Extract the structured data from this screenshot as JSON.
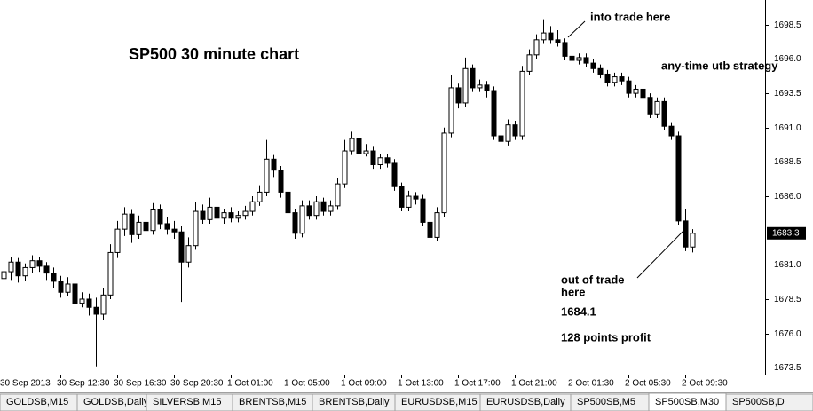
{
  "chart_data": {
    "type": "candlestick",
    "title": "SP500 30 minute chart",
    "annotations": [
      "into trade here",
      "any-time utb strategy",
      "out of trade",
      "here",
      "1684.1",
      "128 points profit"
    ],
    "categories": [
      "30 Sep 2013",
      null,
      null,
      null,
      null,
      null,
      null,
      null,
      "30 Sep 12:30",
      null,
      null,
      null,
      null,
      null,
      null,
      null,
      "30 Sep 16:30",
      null,
      null,
      null,
      null,
      null,
      null,
      null,
      "30 Sep 20:30",
      null,
      null,
      null,
      null,
      null,
      null,
      null,
      "1 Oct 01:00",
      null,
      null,
      null,
      null,
      null,
      null,
      null,
      "1 Oct 05:00",
      null,
      null,
      null,
      null,
      null,
      null,
      null,
      "1 Oct 09:00",
      null,
      null,
      null,
      null,
      null,
      null,
      null,
      "1 Oct 13:00",
      null,
      null,
      null,
      null,
      null,
      null,
      null,
      "1 Oct 17:00",
      null,
      null,
      null,
      null,
      null,
      null,
      null,
      "1 Oct 21:00",
      null,
      null,
      null,
      null,
      null,
      null,
      null,
      "2 Oct 01:30",
      null,
      null,
      null,
      null,
      null,
      null,
      null,
      "2 Oct 05:30",
      null,
      null,
      null,
      null,
      null,
      null,
      null,
      "2 Oct 09:30",
      null
    ],
    "open": [
      1680.0,
      1680.5,
      1681.2,
      1680.2,
      1680.8,
      1681.3,
      1680.9,
      1680.4,
      1679.8,
      1679.0,
      1679.6,
      1678.2,
      1678.5,
      1677.9,
      1677.4,
      1678.8,
      1681.9,
      1683.6,
      1684.7,
      1683.2,
      1684.1,
      1683.5,
      1685.0,
      1684.0,
      1683.6,
      1683.4,
      1681.2,
      1682.4,
      1684.9,
      1684.3,
      1685.2,
      1684.4,
      1684.8,
      1684.4,
      1684.6,
      1684.9,
      1685.6,
      1686.3,
      1688.7,
      1687.9,
      1686.3,
      1684.8,
      1683.3,
      1685.3,
      1684.6,
      1685.6,
      1684.9,
      1685.3,
      1686.9,
      1689.3,
      1690.2,
      1689.1,
      1689.3,
      1688.3,
      1688.8,
      1688.4,
      1686.7,
      1685.2,
      1686.0,
      1685.8,
      1684.1,
      1683.0,
      1684.8,
      1690.6,
      1693.9,
      1692.8,
      1695.3,
      1693.9,
      1694.1,
      1693.7,
      1690.4,
      1690.0,
      1691.2,
      1690.4,
      1695.1,
      1696.3,
      1697.4,
      1697.9,
      1697.4,
      1697.2,
      1696.2,
      1695.9,
      1696.1,
      1695.7,
      1695.3,
      1694.9,
      1694.3,
      1694.7,
      1694.4,
      1693.5,
      1693.8,
      1693.2,
      1692.0,
      1692.9,
      1691.1,
      1690.4,
      1684.2,
      1682.3
    ],
    "high": [
      1681.2,
      1681.6,
      1681.5,
      1681.1,
      1681.7,
      1681.6,
      1681.2,
      1680.8,
      1680.2,
      1680.1,
      1679.9,
      1679.0,
      1678.9,
      1678.6,
      1679.3,
      1682.5,
      1684.2,
      1685.2,
      1685.0,
      1684.6,
      1686.6,
      1685.5,
      1685.4,
      1684.5,
      1684.2,
      1683.8,
      1683.0,
      1685.6,
      1685.4,
      1685.9,
      1685.6,
      1685.1,
      1685.2,
      1684.9,
      1685.3,
      1686.0,
      1686.8,
      1690.1,
      1689.0,
      1688.2,
      1686.6,
      1685.1,
      1685.7,
      1685.7,
      1686.0,
      1685.9,
      1685.7,
      1687.3,
      1690.1,
      1690.7,
      1690.5,
      1689.8,
      1689.6,
      1689.1,
      1689.1,
      1688.7,
      1687.0,
      1686.4,
      1686.3,
      1686.1,
      1684.5,
      1685.2,
      1691.0,
      1694.8,
      1694.2,
      1696.1,
      1695.6,
      1694.5,
      1694.4,
      1694.0,
      1691.8,
      1691.6,
      1691.5,
      1695.5,
      1696.7,
      1697.8,
      1698.9,
      1698.4,
      1698.1,
      1697.5,
      1696.5,
      1696.4,
      1696.4,
      1696.0,
      1695.6,
      1695.2,
      1695.0,
      1695.0,
      1694.7,
      1694.1,
      1694.1,
      1693.5,
      1693.2,
      1693.2,
      1691.4,
      1690.7,
      1685.1,
      1683.6
    ],
    "low": [
      1679.4,
      1679.9,
      1679.7,
      1679.8,
      1680.4,
      1680.5,
      1679.9,
      1679.3,
      1678.6,
      1678.7,
      1677.8,
      1677.9,
      1677.3,
      1673.6,
      1677.0,
      1678.5,
      1681.5,
      1683.1,
      1682.6,
      1682.9,
      1683.0,
      1683.2,
      1683.6,
      1683.2,
      1682.9,
      1678.3,
      1680.8,
      1682.1,
      1684.0,
      1684.0,
      1684.1,
      1684.0,
      1684.1,
      1684.1,
      1684.3,
      1684.6,
      1685.3,
      1686.0,
      1687.4,
      1685.9,
      1684.3,
      1682.9,
      1683.0,
      1684.3,
      1684.3,
      1684.6,
      1684.6,
      1685.0,
      1686.6,
      1689.0,
      1688.8,
      1688.9,
      1688.0,
      1688.0,
      1688.1,
      1686.4,
      1684.9,
      1684.9,
      1685.4,
      1683.8,
      1682.1,
      1682.7,
      1684.5,
      1690.3,
      1692.4,
      1692.5,
      1693.6,
      1693.6,
      1693.2,
      1690.1,
      1689.7,
      1689.7,
      1690.1,
      1690.1,
      1694.8,
      1696.0,
      1697.1,
      1697.1,
      1696.9,
      1695.9,
      1695.6,
      1695.6,
      1695.4,
      1695.0,
      1694.6,
      1694.0,
      1694.0,
      1694.1,
      1693.2,
      1693.2,
      1692.9,
      1691.7,
      1691.7,
      1690.8,
      1690.1,
      1683.9,
      1682.0,
      1681.9
    ],
    "close": [
      1680.5,
      1681.2,
      1680.2,
      1680.8,
      1681.3,
      1680.9,
      1680.4,
      1679.8,
      1679.0,
      1679.6,
      1678.2,
      1678.5,
      1677.9,
      1677.4,
      1678.8,
      1681.9,
      1683.6,
      1684.7,
      1683.2,
      1684.1,
      1683.5,
      1685.0,
      1684.0,
      1683.6,
      1683.4,
      1681.2,
      1682.4,
      1684.9,
      1684.3,
      1685.2,
      1684.4,
      1684.8,
      1684.4,
      1684.6,
      1684.9,
      1685.6,
      1686.3,
      1688.7,
      1687.9,
      1686.3,
      1684.8,
      1683.3,
      1685.3,
      1684.6,
      1685.6,
      1684.9,
      1685.3,
      1686.9,
      1689.3,
      1690.2,
      1689.1,
      1689.3,
      1688.3,
      1688.8,
      1688.4,
      1686.7,
      1685.2,
      1686.0,
      1685.8,
      1684.1,
      1683.0,
      1684.8,
      1690.6,
      1693.9,
      1692.8,
      1695.3,
      1693.9,
      1694.1,
      1693.7,
      1690.4,
      1690.0,
      1691.2,
      1690.4,
      1695.1,
      1696.3,
      1697.4,
      1697.9,
      1697.4,
      1697.2,
      1696.2,
      1695.9,
      1696.1,
      1695.7,
      1695.3,
      1694.9,
      1694.3,
      1694.7,
      1694.4,
      1693.5,
      1693.8,
      1693.2,
      1692.0,
      1692.9,
      1691.1,
      1690.4,
      1684.2,
      1682.3,
      1683.3
    ],
    "up_color": "#ffffff",
    "down_color": "#000000",
    "line_color": "#000000",
    "ylim": [
      1673.0,
      1700.3
    ],
    "yticks": [
      1673.5,
      {
        "value": 1676,
        "label": "1676.0"
      },
      1678.5,
      {
        "value": 1681,
        "label": "1681.0"
      },
      {
        "value": 1686,
        "label": "1686.0"
      },
      1688.5,
      {
        "value": 1691,
        "label": "1691.0"
      },
      1693.5,
      {
        "value": 1696,
        "label": "1696.0"
      },
      1698.5
    ],
    "grid": false
  },
  "tabs": [
    "GOLDSB,M15",
    "GOLDSB,Daily",
    "SILVERSB,M15",
    "BRENTSB,M15",
    "BRENTSB,Daily",
    "EURUSDSB,M15",
    "EURUSDSB,Daily",
    "SP500SB,M5",
    "SP500SB,M30",
    "SP500SB,D"
  ],
  "active_tab": 8
}
